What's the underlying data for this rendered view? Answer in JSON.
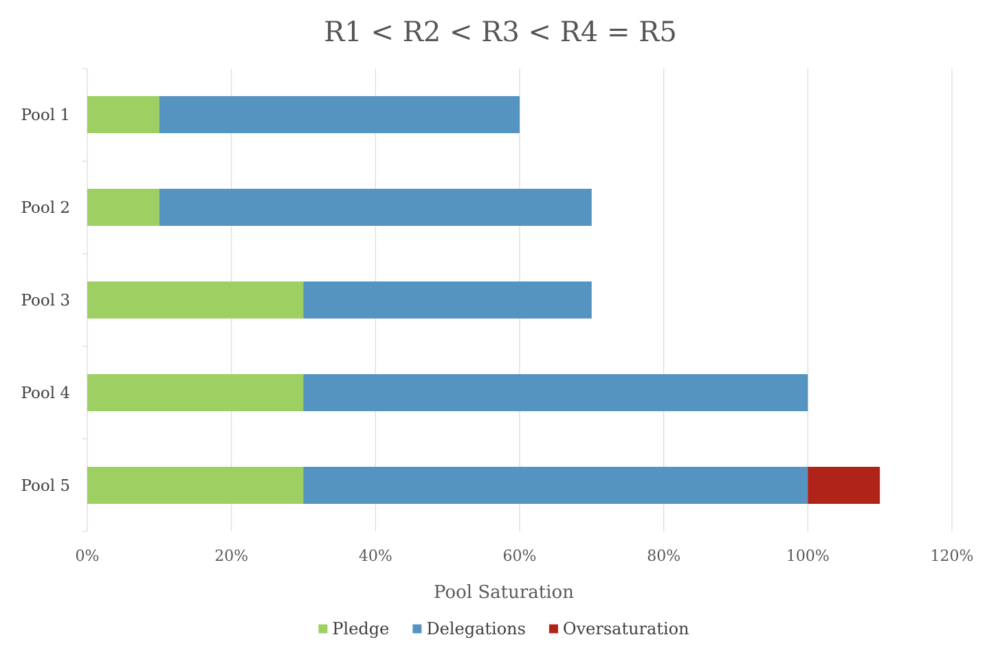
{
  "chart_data": {
    "type": "bar",
    "orientation": "horizontal",
    "stacked": true,
    "title": "R1 < R2 < R3 < R4 = R5",
    "xlabel": "Pool Saturation",
    "ylabel": "",
    "categories": [
      "Pool 1",
      "Pool 2",
      "Pool 3",
      "Pool 4",
      "Pool 5"
    ],
    "series": [
      {
        "name": "Pledge",
        "color": "#9ecf62",
        "values": [
          10,
          10,
          30,
          30,
          30
        ]
      },
      {
        "name": "Delegations",
        "color": "#5593c0",
        "values": [
          50,
          60,
          40,
          70,
          70
        ]
      },
      {
        "name": "Oversaturation",
        "color": "#b02318",
        "values": [
          0,
          0,
          0,
          0,
          10
        ]
      }
    ],
    "xlim": [
      0,
      120
    ],
    "ticks": [
      0,
      20,
      40,
      60,
      80,
      100,
      120
    ],
    "tick_labels": [
      "0%",
      "20%",
      "40%",
      "60%",
      "80%",
      "100%",
      "120%"
    ],
    "grid": "vertical",
    "legend": "bottom"
  }
}
